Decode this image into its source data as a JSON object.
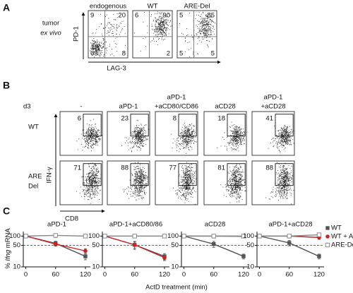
{
  "panel_a": {
    "label": "A",
    "row_label": [
      "tumor",
      "ex vivo"
    ],
    "y_axis": "PD-1",
    "x_axis": "LAG-3",
    "plots": [
      {
        "title": "endogenous",
        "quadrants": {
          "tl": 9,
          "tr": 20,
          "bl": 63,
          "br": 8
        }
      },
      {
        "title": "WT",
        "quadrants": {
          "tl": 6,
          "tr": 90,
          "br": 2
        }
      },
      {
        "title": "ARE-Del",
        "quadrants": {
          "tl": 5,
          "tr": 85,
          "bl": 5,
          "br": 5
        }
      }
    ]
  },
  "panel_b": {
    "label": "B",
    "condition_label": "d3",
    "y_axis": "IFN-γ",
    "x_axis": "CD8",
    "columns": [
      {
        "lines": [
          "-"
        ]
      },
      {
        "lines": [
          "aPD-1"
        ]
      },
      {
        "lines": [
          "aPD-1",
          "+aCD80/CD86"
        ]
      },
      {
        "lines": [
          "aCD28"
        ]
      },
      {
        "lines": [
          "aPD-1",
          "+aCD28"
        ]
      }
    ],
    "rows": [
      {
        "label_lines": [
          "WT"
        ],
        "values": [
          6,
          23,
          8,
          18,
          41
        ]
      },
      {
        "label_lines": [
          "ARE",
          "Del"
        ],
        "values": [
          71,
          88,
          77,
          81,
          88
        ]
      }
    ]
  },
  "panel_c": {
    "label": "C",
    "x_axis_label": "ActD treatment (min)",
    "y_axis_label_parts": [
      "%",
      "Ifng",
      "mRNA"
    ]
  },
  "chart_data": [
    {
      "type": "line",
      "title": "aPD-1",
      "x": [
        0,
        60,
        120
      ],
      "xlim": [
        -5,
        130
      ],
      "xticks": [
        0,
        60,
        120
      ],
      "ylim": [
        10,
        140
      ],
      "yticks": [
        10,
        50,
        100
      ],
      "log_y": true,
      "reference_line": 50,
      "legend": "none",
      "series": [
        {
          "name": "WT",
          "color": "#555555",
          "marker": "square",
          "values": [
            100,
            58,
            22
          ],
          "errors": [
            0,
            10,
            5
          ]
        },
        {
          "name": "WT + Ab",
          "color": "#cc2222",
          "marker": "circle",
          "values": [
            100,
            55,
            33
          ],
          "errors": [
            0,
            8,
            6
          ]
        },
        {
          "name": "ARE-Del",
          "color": "#888888",
          "marker": "open-square",
          "values": [
            100,
            105,
            100
          ],
          "errors": [
            0,
            15,
            10
          ]
        }
      ]
    },
    {
      "type": "line",
      "title": "aPD-1+aCD80/86",
      "x": [
        0,
        60,
        120
      ],
      "xlim": [
        -5,
        130
      ],
      "xticks": [
        0,
        60,
        120
      ],
      "ylim": [
        10,
        140
      ],
      "yticks": [
        10,
        50,
        100
      ],
      "log_y": true,
      "reference_line": 50,
      "legend": "none",
      "series": [
        {
          "name": "WT",
          "color": "#555555",
          "marker": "square",
          "values": [
            100,
            52,
            22
          ],
          "errors": [
            0,
            15,
            5
          ]
        },
        {
          "name": "WT + Ab",
          "color": "#cc2222",
          "marker": "circle",
          "values": [
            100,
            52,
            20
          ],
          "errors": [
            0,
            12,
            4
          ]
        },
        {
          "name": "ARE-Del",
          "color": "#888888",
          "marker": "open-square",
          "values": [
            100,
            100,
            100
          ],
          "errors": [
            0,
            12,
            10
          ]
        }
      ]
    },
    {
      "type": "line",
      "title": "aCD28",
      "x": [
        0,
        60,
        120
      ],
      "xlim": [
        -5,
        130
      ],
      "xticks": [
        0,
        60,
        120
      ],
      "ylim": [
        10,
        140
      ],
      "yticks": [
        10,
        50,
        100
      ],
      "log_y": true,
      "reference_line": 50,
      "legend": "none",
      "series": [
        {
          "name": "WT",
          "color": "#555555",
          "marker": "square",
          "values": [
            100,
            55,
            22
          ],
          "errors": [
            0,
            12,
            4
          ]
        },
        {
          "name": "WT + Ab",
          "color": "#cc2222",
          "marker": "circle",
          "values": [
            100,
            100,
            98
          ],
          "errors": [
            0,
            10,
            10
          ]
        },
        {
          "name": "ARE-Del",
          "color": "#888888",
          "marker": "open-square",
          "values": [
            100,
            100,
            100
          ],
          "errors": [
            0,
            14,
            12
          ]
        }
      ]
    },
    {
      "type": "line",
      "title": "aPD-1+aCD28",
      "x": [
        0,
        60,
        120
      ],
      "xlim": [
        -5,
        130
      ],
      "xticks": [
        0,
        60,
        120
      ],
      "ylim": [
        10,
        140
      ],
      "yticks": [
        10,
        50,
        100
      ],
      "log_y": true,
      "reference_line": 50,
      "legend": "outside-right",
      "series": [
        {
          "name": "WT",
          "color": "#555555",
          "marker": "square",
          "values": [
            100,
            60,
            22
          ],
          "errors": [
            0,
            12,
            4
          ]
        },
        {
          "name": "WT + Ab",
          "color": "#cc2222",
          "marker": "circle",
          "values": [
            100,
            100,
            90
          ],
          "errors": [
            0,
            12,
            12
          ]
        },
        {
          "name": "ARE-Del",
          "color": "#888888",
          "marker": "open-square",
          "values": [
            100,
            100,
            110
          ],
          "errors": [
            0,
            14,
            14
          ]
        }
      ]
    }
  ]
}
